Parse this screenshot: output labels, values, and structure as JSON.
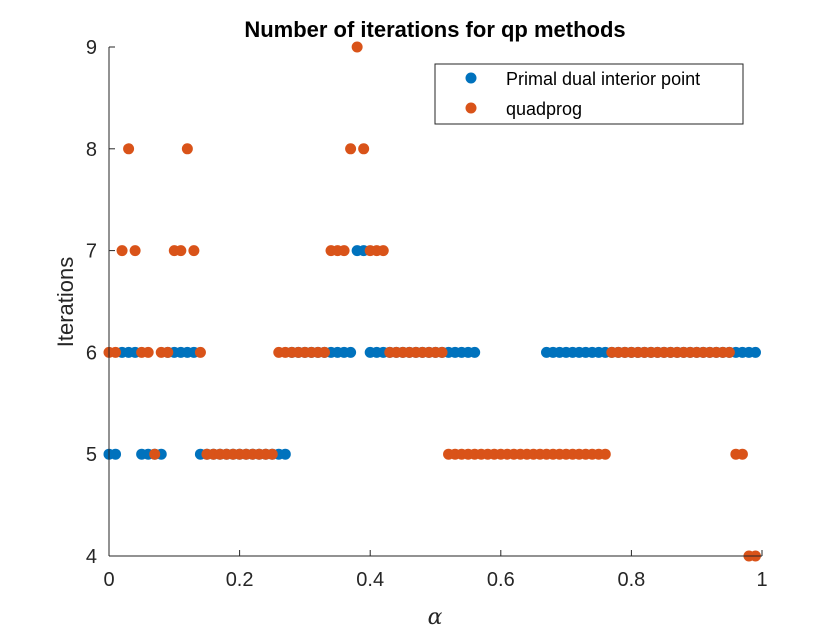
{
  "chart_data": {
    "type": "scatter",
    "title": "Number of iterations for qp methods",
    "xlabel": "α",
    "ylabel": "Iterations",
    "xlim": [
      0,
      1
    ],
    "ylim": [
      4,
      9
    ],
    "xticks": [
      "0",
      "0.2",
      "0.4",
      "0.6",
      "0.8",
      "1"
    ],
    "yticks": [
      "4",
      "5",
      "6",
      "7",
      "8",
      "9"
    ],
    "grid": false,
    "legend_position": "top-right",
    "series": [
      {
        "name": "Primal dual interior point",
        "color": "#0072BD",
        "points": [
          [
            0.0,
            5
          ],
          [
            0.01,
            5
          ],
          [
            0.02,
            6
          ],
          [
            0.03,
            6
          ],
          [
            0.04,
            6
          ],
          [
            0.05,
            5
          ],
          [
            0.06,
            5
          ],
          [
            0.07,
            5
          ],
          [
            0.08,
            5
          ],
          [
            0.09,
            6
          ],
          [
            0.1,
            6
          ],
          [
            0.11,
            6
          ],
          [
            0.12,
            6
          ],
          [
            0.13,
            6
          ],
          [
            0.14,
            5
          ],
          [
            0.15,
            5
          ],
          [
            0.16,
            5
          ],
          [
            0.17,
            5
          ],
          [
            0.18,
            5
          ],
          [
            0.19,
            5
          ],
          [
            0.2,
            5
          ],
          [
            0.21,
            5
          ],
          [
            0.22,
            5
          ],
          [
            0.23,
            5
          ],
          [
            0.24,
            5
          ],
          [
            0.25,
            5
          ],
          [
            0.26,
            5
          ],
          [
            0.27,
            5
          ],
          [
            0.28,
            6
          ],
          [
            0.29,
            6
          ],
          [
            0.3,
            6
          ],
          [
            0.31,
            6
          ],
          [
            0.32,
            6
          ],
          [
            0.33,
            6
          ],
          [
            0.34,
            6
          ],
          [
            0.35,
            6
          ],
          [
            0.36,
            6
          ],
          [
            0.37,
            6
          ],
          [
            0.38,
            7
          ],
          [
            0.39,
            7
          ],
          [
            0.4,
            6
          ],
          [
            0.41,
            6
          ],
          [
            0.42,
            6
          ],
          [
            0.43,
            6
          ],
          [
            0.44,
            6
          ],
          [
            0.45,
            6
          ],
          [
            0.46,
            6
          ],
          [
            0.47,
            6
          ],
          [
            0.48,
            6
          ],
          [
            0.49,
            6
          ],
          [
            0.5,
            6
          ],
          [
            0.51,
            6
          ],
          [
            0.52,
            6
          ],
          [
            0.53,
            6
          ],
          [
            0.54,
            6
          ],
          [
            0.55,
            6
          ],
          [
            0.56,
            6
          ],
          [
            0.67,
            6
          ],
          [
            0.68,
            6
          ],
          [
            0.69,
            6
          ],
          [
            0.7,
            6
          ],
          [
            0.71,
            6
          ],
          [
            0.72,
            6
          ],
          [
            0.73,
            6
          ],
          [
            0.74,
            6
          ],
          [
            0.75,
            6
          ],
          [
            0.76,
            6
          ],
          [
            0.77,
            6
          ],
          [
            0.78,
            6
          ],
          [
            0.79,
            6
          ],
          [
            0.8,
            6
          ],
          [
            0.81,
            6
          ],
          [
            0.82,
            6
          ],
          [
            0.83,
            6
          ],
          [
            0.84,
            6
          ],
          [
            0.85,
            6
          ],
          [
            0.86,
            6
          ],
          [
            0.87,
            6
          ],
          [
            0.88,
            6
          ],
          [
            0.89,
            6
          ],
          [
            0.9,
            6
          ],
          [
            0.91,
            6
          ],
          [
            0.92,
            6
          ],
          [
            0.93,
            6
          ],
          [
            0.94,
            6
          ],
          [
            0.95,
            6
          ],
          [
            0.96,
            6
          ],
          [
            0.97,
            6
          ],
          [
            0.98,
            6
          ],
          [
            0.99,
            6
          ]
        ]
      },
      {
        "name": "quadprog",
        "color": "#D95319",
        "points": [
          [
            0.0,
            6
          ],
          [
            0.01,
            6
          ],
          [
            0.02,
            7
          ],
          [
            0.03,
            8
          ],
          [
            0.04,
            7
          ],
          [
            0.05,
            6
          ],
          [
            0.06,
            6
          ],
          [
            0.07,
            5
          ],
          [
            0.08,
            6
          ],
          [
            0.09,
            6
          ],
          [
            0.1,
            7
          ],
          [
            0.11,
            7
          ],
          [
            0.12,
            8
          ],
          [
            0.13,
            7
          ],
          [
            0.14,
            6
          ],
          [
            0.15,
            5
          ],
          [
            0.16,
            5
          ],
          [
            0.17,
            5
          ],
          [
            0.18,
            5
          ],
          [
            0.19,
            5
          ],
          [
            0.2,
            5
          ],
          [
            0.21,
            5
          ],
          [
            0.22,
            5
          ],
          [
            0.23,
            5
          ],
          [
            0.24,
            5
          ],
          [
            0.25,
            5
          ],
          [
            0.26,
            6
          ],
          [
            0.27,
            6
          ],
          [
            0.28,
            6
          ],
          [
            0.29,
            6
          ],
          [
            0.3,
            6
          ],
          [
            0.31,
            6
          ],
          [
            0.32,
            6
          ],
          [
            0.33,
            6
          ],
          [
            0.34,
            7
          ],
          [
            0.35,
            7
          ],
          [
            0.36,
            7
          ],
          [
            0.37,
            8
          ],
          [
            0.38,
            9
          ],
          [
            0.39,
            8
          ],
          [
            0.4,
            7
          ],
          [
            0.41,
            7
          ],
          [
            0.42,
            7
          ],
          [
            0.43,
            6
          ],
          [
            0.44,
            6
          ],
          [
            0.45,
            6
          ],
          [
            0.46,
            6
          ],
          [
            0.47,
            6
          ],
          [
            0.48,
            6
          ],
          [
            0.49,
            6
          ],
          [
            0.5,
            6
          ],
          [
            0.51,
            6
          ],
          [
            0.52,
            5
          ],
          [
            0.53,
            5
          ],
          [
            0.54,
            5
          ],
          [
            0.55,
            5
          ],
          [
            0.56,
            5
          ],
          [
            0.57,
            5
          ],
          [
            0.58,
            5
          ],
          [
            0.59,
            5
          ],
          [
            0.6,
            5
          ],
          [
            0.61,
            5
          ],
          [
            0.62,
            5
          ],
          [
            0.63,
            5
          ],
          [
            0.64,
            5
          ],
          [
            0.65,
            5
          ],
          [
            0.66,
            5
          ],
          [
            0.67,
            5
          ],
          [
            0.68,
            5
          ],
          [
            0.69,
            5
          ],
          [
            0.7,
            5
          ],
          [
            0.71,
            5
          ],
          [
            0.72,
            5
          ],
          [
            0.73,
            5
          ],
          [
            0.74,
            5
          ],
          [
            0.75,
            5
          ],
          [
            0.76,
            5
          ],
          [
            0.77,
            6
          ],
          [
            0.78,
            6
          ],
          [
            0.79,
            6
          ],
          [
            0.8,
            6
          ],
          [
            0.81,
            6
          ],
          [
            0.82,
            6
          ],
          [
            0.83,
            6
          ],
          [
            0.84,
            6
          ],
          [
            0.85,
            6
          ],
          [
            0.86,
            6
          ],
          [
            0.87,
            6
          ],
          [
            0.88,
            6
          ],
          [
            0.89,
            6
          ],
          [
            0.9,
            6
          ],
          [
            0.91,
            6
          ],
          [
            0.92,
            6
          ],
          [
            0.93,
            6
          ],
          [
            0.94,
            6
          ],
          [
            0.95,
            6
          ],
          [
            0.96,
            5
          ],
          [
            0.97,
            5
          ],
          [
            0.98,
            4
          ],
          [
            0.99,
            4
          ]
        ]
      }
    ]
  }
}
